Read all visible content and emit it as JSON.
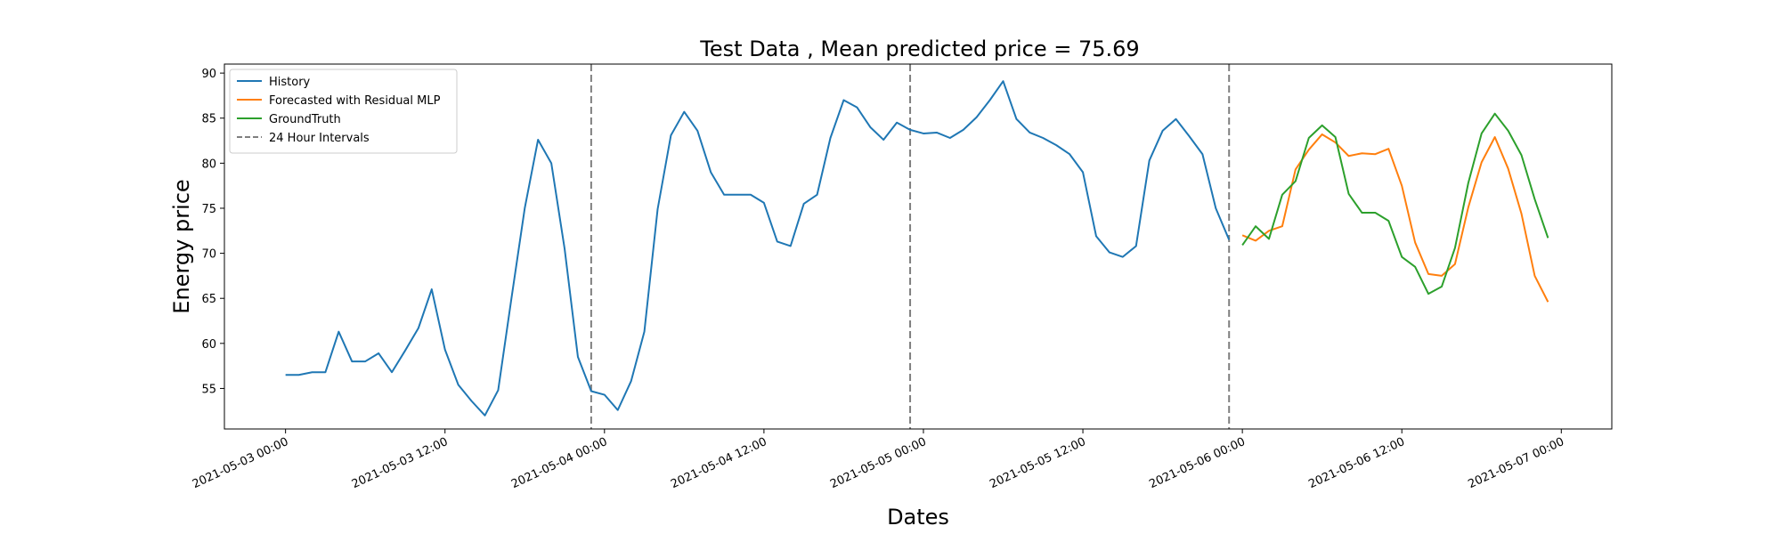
{
  "chart_data": {
    "type": "line",
    "title": "Test Data , Mean predicted price = 75.69",
    "xlabel": "Dates",
    "ylabel": "Energy price",
    "x_start": "2021-05-03 00:00",
    "x_step_hours": 1,
    "x_ticks": [
      "2021-05-03 00:00",
      "2021-05-03 12:00",
      "2021-05-04 00:00",
      "2021-05-04 12:00",
      "2021-05-05 00:00",
      "2021-05-05 12:00",
      "2021-05-06 00:00",
      "2021-05-06 12:00",
      "2021-05-07 00:00"
    ],
    "y_ticks": [
      55,
      60,
      65,
      70,
      75,
      80,
      85,
      90
    ],
    "ylim": [
      50.5,
      91
    ],
    "xlim": [
      "2021-05-02 19:24",
      "2021-05-07 03:48"
    ],
    "legend_position": "upper-left",
    "grid": false,
    "vlines": {
      "name": "24 Hour Intervals",
      "style": "dashed",
      "color": "#7f7f7f",
      "x": [
        "2021-05-03 23:00",
        "2021-05-04 23:00",
        "2021-05-05 23:00"
      ]
    },
    "series": [
      {
        "name": "History",
        "color": "#1f77b4",
        "x_start": "2021-05-03 00:00",
        "values": [
          56.5,
          56.5,
          56.8,
          56.8,
          61.3,
          58.0,
          58.0,
          58.9,
          56.8,
          59.2,
          61.7,
          66.0,
          59.3,
          55.4,
          53.6,
          52.0,
          54.8,
          65.0,
          75.0,
          82.6,
          80.0,
          70.5,
          58.5,
          54.7,
          54.3,
          52.6,
          55.8,
          61.3,
          74.9,
          83.1,
          85.7,
          83.6,
          79.0,
          76.5,
          76.5,
          76.5,
          75.6,
          71.3,
          70.8,
          75.5,
          76.5,
          82.8,
          87.0,
          86.2,
          84.0,
          82.6,
          84.5,
          83.7,
          83.3,
          83.4,
          82.8,
          83.7,
          85.1,
          87.0,
          89.1,
          84.9,
          83.4,
          82.8,
          82.0,
          81.0,
          79.0,
          71.9,
          70.1,
          69.6,
          70.8,
          80.3,
          83.6,
          84.9,
          83.0,
          81.0,
          75.0,
          71.5
        ]
      },
      {
        "name": "Forecasted with Residual MLP",
        "color": "#ff7f0e",
        "x_start": "2021-05-06 00:00",
        "values": [
          72.0,
          71.4,
          72.5,
          73.0,
          79.3,
          81.5,
          83.2,
          82.3,
          80.8,
          81.1,
          81.0,
          81.6,
          77.5,
          71.2,
          67.7,
          67.5,
          68.8,
          75.1,
          80.1,
          82.9,
          79.4,
          74.4,
          67.5,
          64.6
        ]
      },
      {
        "name": "GroundTruth",
        "color": "#2ca02c",
        "x_start": "2021-05-06 00:00",
        "values": [
          70.9,
          73.0,
          71.6,
          76.5,
          78.0,
          82.8,
          84.2,
          82.9,
          76.6,
          74.5,
          74.5,
          73.6,
          69.6,
          68.5,
          65.5,
          66.3,
          70.6,
          77.8,
          83.3,
          85.5,
          83.6,
          80.9,
          76.0,
          71.7
        ]
      }
    ]
  }
}
